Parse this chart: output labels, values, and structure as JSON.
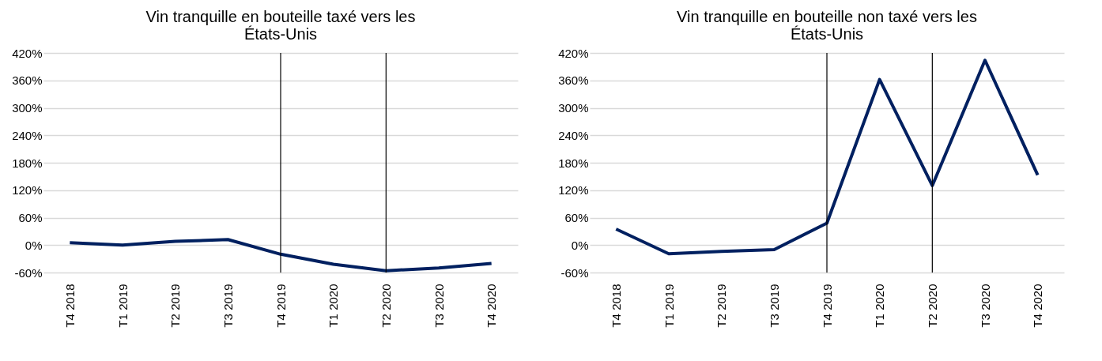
{
  "chart_data": [
    {
      "type": "line",
      "title": "Vin tranquille en bouteille taxé vers les États-Unis",
      "categories": [
        "T4 2018",
        "T1 2019",
        "T2 2019",
        "T3 2019",
        "T4 2019",
        "T1 2020",
        "T2 2020",
        "T3 2020",
        "T4 2020"
      ],
      "series": [
        {
          "color": "#002060",
          "values": [
            5,
            0,
            8,
            12,
            -20,
            -42,
            -56,
            -50,
            -40
          ]
        }
      ],
      "ylim": [
        -60,
        420
      ],
      "yticks": [
        {
          "value": -60,
          "label": "-60%"
        },
        {
          "value": 0,
          "label": "0%"
        },
        {
          "value": 60,
          "label": "60%"
        },
        {
          "value": 120,
          "label": "120%"
        },
        {
          "value": 180,
          "label": "180%"
        },
        {
          "value": 240,
          "label": "240%"
        },
        {
          "value": 300,
          "label": "300%"
        },
        {
          "value": 360,
          "label": "360%"
        },
        {
          "value": 420,
          "label": "420%"
        }
      ],
      "ref_lines": [
        {
          "axis": "x",
          "value": "T4 2019",
          "color": "#000000"
        },
        {
          "axis": "x",
          "value": "T2 2020",
          "color": "#000000"
        }
      ],
      "grid": "y",
      "marker": "none"
    },
    {
      "type": "line",
      "title": "Vin tranquille en bouteille non taxé vers les États-Unis",
      "categories": [
        "T4 2018",
        "T1 2019",
        "T2 2019",
        "T3 2019",
        "T4 2019",
        "T1 2020",
        "T2 2020",
        "T3 2020",
        "T4 2020"
      ],
      "series": [
        {
          "color": "#002060",
          "values": [
            35,
            -19,
            -14,
            -10,
            48,
            362,
            130,
            404,
            153
          ]
        }
      ],
      "ylim": [
        -60,
        420
      ],
      "yticks": [
        {
          "value": -60,
          "label": "-60%"
        },
        {
          "value": 0,
          "label": "0%"
        },
        {
          "value": 60,
          "label": "60%"
        },
        {
          "value": 120,
          "label": "120%"
        },
        {
          "value": 180,
          "label": "180%"
        },
        {
          "value": 240,
          "label": "240%"
        },
        {
          "value": 300,
          "label": "300%"
        },
        {
          "value": 360,
          "label": "360%"
        },
        {
          "value": 420,
          "label": "420%"
        }
      ],
      "ref_lines": [
        {
          "axis": "x",
          "value": "T4 2019",
          "color": "#000000"
        },
        {
          "axis": "x",
          "value": "T2 2020",
          "color": "#000000"
        }
      ],
      "grid": "y",
      "marker": "none"
    }
  ]
}
